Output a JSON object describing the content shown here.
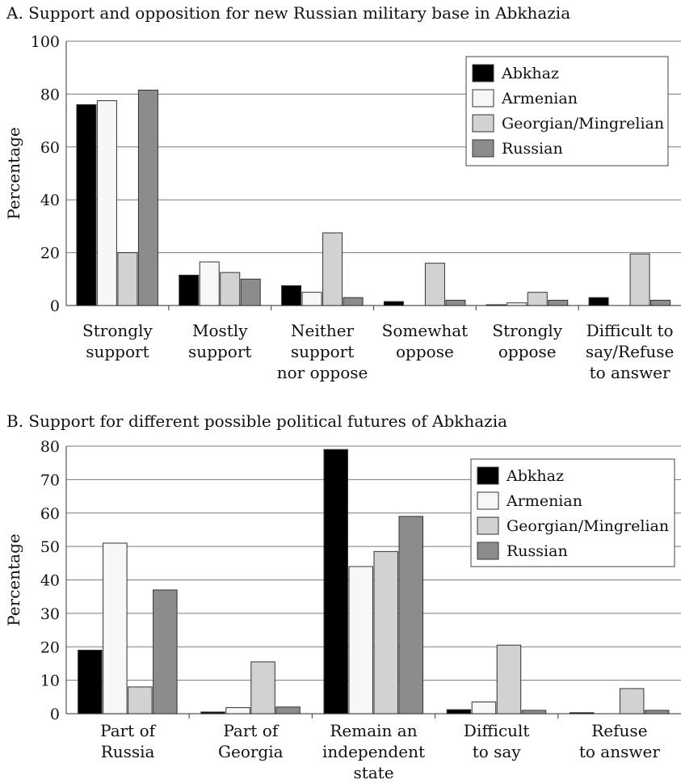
{
  "chart_data": [
    {
      "type": "bar",
      "title": "A. Support and opposition for new Russian military base in Abkhazia",
      "ylabel": "Percentage",
      "xlabel": "",
      "ylim": [
        0,
        100
      ],
      "yticks": [
        0,
        20,
        40,
        60,
        80,
        100
      ],
      "grid": true,
      "legend_position": "top-right",
      "categories": [
        [
          "Strongly",
          "support"
        ],
        [
          "Mostly",
          "support"
        ],
        [
          "Neither",
          "support",
          "nor oppose"
        ],
        [
          "Somewhat",
          "oppose"
        ],
        [
          "Strongly",
          "oppose"
        ],
        [
          "Difficult to",
          "say/Refuse",
          "to answer"
        ]
      ],
      "series": [
        {
          "name": "Abkhaz",
          "color": "#000000",
          "values": [
            76,
            11.5,
            7.5,
            1.5,
            0.3,
            3
          ]
        },
        {
          "name": "Armenian",
          "color": "#f7f7f7",
          "values": [
            77.5,
            16.5,
            5,
            0,
            1,
            0
          ]
        },
        {
          "name": "Georgian/Mingrelian",
          "color": "#d2d2d2",
          "values": [
            20,
            12.5,
            27.5,
            16,
            5,
            19.5
          ]
        },
        {
          "name": "Russian",
          "color": "#8c8c8c",
          "values": [
            81.5,
            10,
            3,
            2,
            2,
            2
          ]
        }
      ]
    },
    {
      "type": "bar",
      "title": "B. Support for different possible political futures of Abkhazia",
      "ylabel": "Percentage",
      "xlabel": "",
      "ylim": [
        0,
        80
      ],
      "yticks": [
        0,
        10,
        20,
        30,
        40,
        50,
        60,
        70,
        80
      ],
      "grid": true,
      "legend_position": "top-right",
      "categories": [
        [
          "Part of",
          "Russia"
        ],
        [
          "Part of",
          "Georgia"
        ],
        [
          "Remain an",
          "independent",
          "state"
        ],
        [
          "Difficult",
          "to say"
        ],
        [
          "Refuse",
          "to answer"
        ]
      ],
      "series": [
        {
          "name": "Abkhaz",
          "color": "#000000",
          "values": [
            19,
            0.5,
            79,
            1.2,
            0.3
          ]
        },
        {
          "name": "Armenian",
          "color": "#f7f7f7",
          "values": [
            51,
            1.8,
            44,
            3.5,
            0
          ]
        },
        {
          "name": "Georgian/Mingrelian",
          "color": "#d2d2d2",
          "values": [
            8,
            15.5,
            48.5,
            20.5,
            7.5
          ]
        },
        {
          "name": "Russian",
          "color": "#8c8c8c",
          "values": [
            37,
            2,
            59,
            1,
            1
          ]
        }
      ]
    }
  ]
}
